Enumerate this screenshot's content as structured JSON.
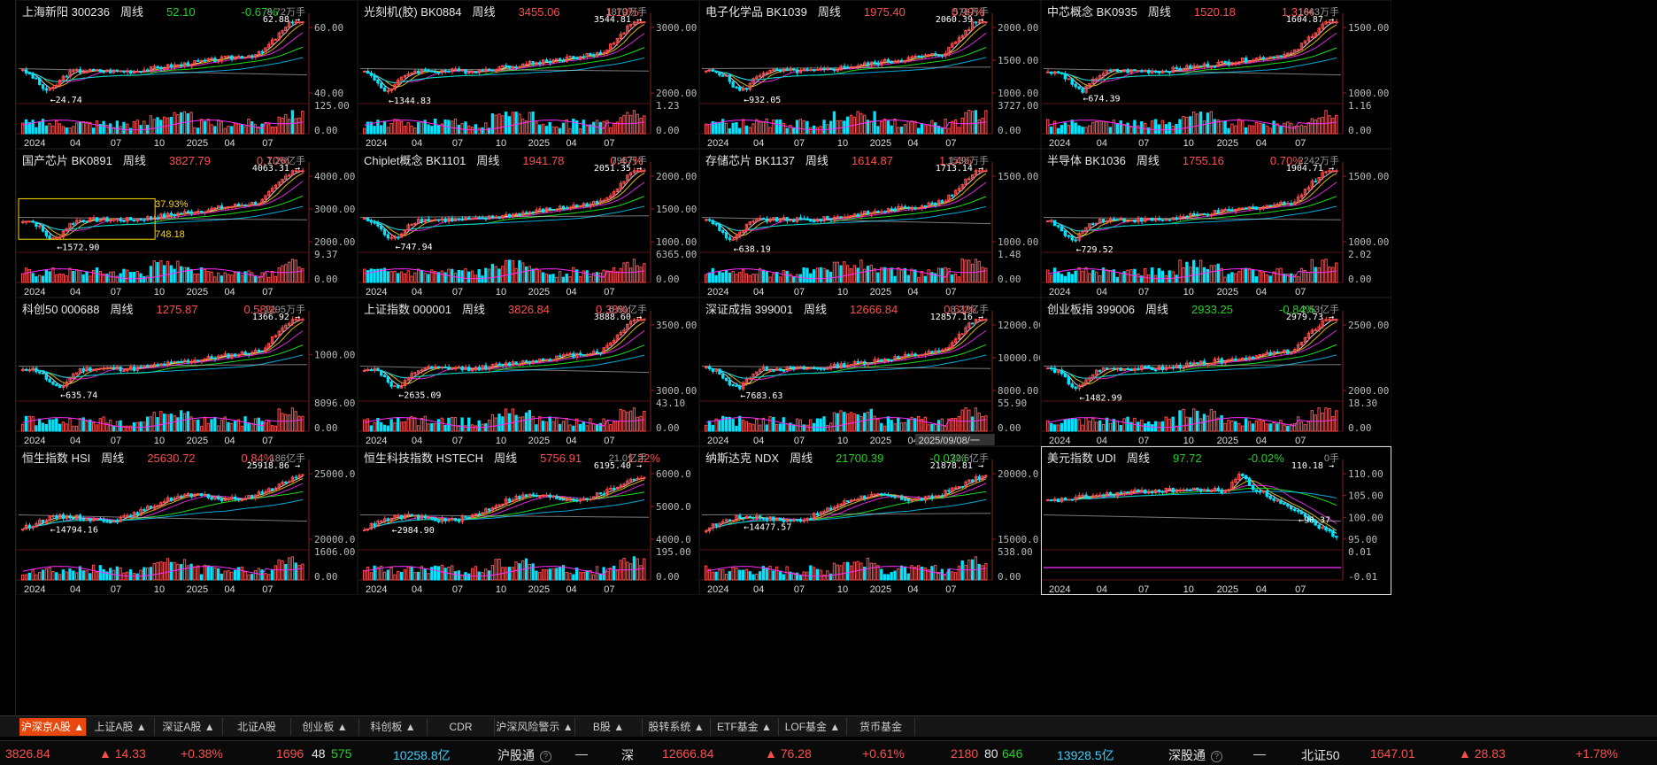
{
  "panels": [
    {
      "name": "上海新阳",
      "code": "300236",
      "period": "周线",
      "price": "52.10",
      "change": "-0.67%",
      "dir": "dn",
      "volume": "8.72万手",
      "high": "62.88",
      "low": "24.74",
      "y_ticks": [
        "60.00",
        "40.00"
      ],
      "vol_ticks": [
        "125.00",
        "0.00"
      ]
    },
    {
      "name": "光刻机(胶)",
      "code": "BK0884",
      "period": "周线",
      "price": "3455.06",
      "change": "1.19%",
      "dir": "up",
      "volume": "1870万手",
      "high": "3544.81",
      "low": "1344.83",
      "y_ticks": [
        "3000.00",
        "2000.00"
      ],
      "vol_ticks": [
        "1.23",
        "0.00"
      ]
    },
    {
      "name": "电子化学品",
      "code": "BK1039",
      "period": "周线",
      "price": "1975.40",
      "change": "0.99%",
      "dir": "up",
      "volume": "576万手",
      "high": "2060.39",
      "low": "932.05",
      "y_ticks": [
        "2000.00",
        "1500.00",
        "1000.00"
      ],
      "vol_ticks": [
        "3727.00",
        "0.00"
      ]
    },
    {
      "name": "中芯概念",
      "code": "BK0935",
      "period": "周线",
      "price": "1520.18",
      "change": "1.31%",
      "dir": "up",
      "volume": "1643万手",
      "high": "1604.87",
      "low": "674.39",
      "y_ticks": [
        "1500.00",
        "1000.00"
      ],
      "vol_ticks": [
        "1.16",
        "0.00"
      ]
    },
    {
      "name": "国产芯片",
      "code": "BK0891",
      "period": "周线",
      "price": "3827.79",
      "change": "0.70%",
      "dir": "up",
      "volume": "1.26亿手",
      "high": "4063.31",
      "low": "1572.90",
      "y_ticks": [
        "4000.00",
        "3000.00",
        "2000.00"
      ],
      "vol_ticks": [
        "9.37",
        "0.00"
      ],
      "box_pct": "37.93%",
      "box_val": "748.18"
    },
    {
      "name": "Chiplet概念",
      "code": "BK1101",
      "period": "周线",
      "price": "1941.78",
      "change": "0.47%",
      "dir": "up",
      "volume": "796万手",
      "high": "2051.35",
      "low": "747.94",
      "y_ticks": [
        "2000.00",
        "1500.00",
        "1000.00"
      ],
      "vol_ticks": [
        "6365.00",
        "0.00"
      ]
    },
    {
      "name": "存储芯片",
      "code": "BK1137",
      "period": "周线",
      "price": "1614.87",
      "change": "1.14%",
      "dir": "up",
      "volume": "1536万手",
      "high": "1713.14",
      "low": "638.19",
      "y_ticks": [
        "1500.00",
        "1000.00"
      ],
      "vol_ticks": [
        "1.48",
        "0.00"
      ]
    },
    {
      "name": "半导体",
      "code": "BK1036",
      "period": "周线",
      "price": "1755.16",
      "change": "0.70%",
      "dir": "up",
      "volume": "2242万手",
      "high": "1904.71",
      "low": "729.52",
      "y_ticks": [
        "1500.00",
        "1000.00"
      ],
      "vol_ticks": [
        "2.02",
        "0.00"
      ]
    },
    {
      "name": "科创50",
      "code": "000688",
      "period": "周线",
      "price": "1275.87",
      "change": "0.58%",
      "dir": "up",
      "volume": "1295万手",
      "high": "1366.92",
      "low": "635.74",
      "y_ticks": [
        "1000.00"
      ],
      "vol_ticks": [
        "8096.00",
        "0.00"
      ]
    },
    {
      "name": "上证指数",
      "code": "000001",
      "period": "周线",
      "price": "3826.84",
      "change": "0.38%",
      "dir": "up",
      "volume": "6.60亿手",
      "high": "3888.60",
      "low": "2635.09",
      "y_ticks": [
        "3500.00",
        "3000.00"
      ],
      "vol_ticks": [
        "43.10",
        "0.00"
      ]
    },
    {
      "name": "深证成指",
      "code": "399001",
      "period": "周线",
      "price": "12666.84",
      "change": "0.61%",
      "dir": "up",
      "volume": "8.22亿手",
      "high": "12857.16",
      "low": "7683.63",
      "y_ticks": [
        "12000.00",
        "10000.00",
        "8000.00"
      ],
      "vol_ticks": [
        "55.90",
        "0.00"
      ],
      "date_tip": "2025/09/08/一"
    },
    {
      "name": "创业板指",
      "code": "399006",
      "period": "周线",
      "price": "2933.25",
      "change": "-0.84%",
      "dir": "dn",
      "volume": "2.53亿手",
      "high": "2979.73",
      "low": "1482.99",
      "y_ticks": [
        "2500.00",
        "2000.00"
      ],
      "vol_ticks": [
        "18.30",
        "0.00"
      ]
    },
    {
      "name": "恒生指数",
      "code": "HSI",
      "period": "周线",
      "price": "25630.72",
      "change": "0.84%",
      "dir": "up",
      "volume": "186亿手",
      "high": "25918.86",
      "low": "14794.16",
      "y_ticks": [
        "25000.0",
        "20000.0"
      ],
      "vol_ticks": [
        "1606.00",
        "0.00"
      ]
    },
    {
      "name": "恒生科技指数",
      "code": "HSTECH",
      "period": "周线",
      "price": "5756.91",
      "change": "1.22%",
      "dir": "up",
      "volume": "21.0亿手",
      "high": "6195.40",
      "low": "2984.90",
      "y_ticks": [
        "6000.0",
        "5000.0",
        "4000.0"
      ],
      "vol_ticks": [
        "195.00",
        "0.00"
      ]
    },
    {
      "name": "纳斯达克",
      "code": "NDX",
      "period": "周线",
      "price": "21700.39",
      "change": "-0.03%",
      "dir": "dn",
      "volume": "72.5亿手",
      "high": "21878.81",
      "low": "14477.57",
      "y_ticks": [
        "20000.0",
        "15000.0"
      ],
      "vol_ticks": [
        "538.00",
        "0.00"
      ]
    },
    {
      "name": "美元指数",
      "code": "UDI",
      "period": "周线",
      "price": "97.72",
      "change": "-0.02%",
      "dir": "dn",
      "volume": "0手",
      "high": "110.18",
      "low": "96.37",
      "y_ticks": [
        "110.00",
        "105.00",
        "100.00",
        "95.00"
      ],
      "vol_ticks": [
        "0.01",
        "-0.01"
      ]
    }
  ],
  "x_labels": [
    "2024",
    "04",
    "07",
    "10",
    "2025",
    "04",
    "07"
  ],
  "tabs": [
    "沪深京A股",
    "上证A股",
    "深证A股",
    "北证A股",
    "创业板",
    "科创板",
    "CDR",
    "沪深风险警示",
    "B股",
    "股转系统",
    "ETF基金",
    "LOF基金",
    "货币基金"
  ],
  "status": {
    "sh_index": "3826.84",
    "sh_change": "▲ 14.33",
    "sh_pct": "+0.38%",
    "sh_up": "1696",
    "sh_flat": "48",
    "sh_down": "575",
    "sh_amount": "10258.8亿",
    "hgt_label": "沪股通",
    "hgt_value": "—",
    "sz_label": "深",
    "sz_index": "12666.84",
    "sz_change": "▲ 76.28",
    "sz_pct": "+0.61%",
    "sz_up": "2180",
    "sz_flat": "80",
    "sz_down": "646",
    "sz_amount": "13928.5亿",
    "sgt_label": "深股通",
    "sgt_value": "—",
    "bz_label": "北证50",
    "bz_index": "1647.01",
    "bz_change": "▲ 28.83",
    "bz_pct": "+1.78%"
  },
  "colors": {
    "up": "#ff4d4d",
    "down": "#22d122",
    "cyan": "#00e5ff",
    "ma5": "#ffffff",
    "ma10": "#ffd700",
    "ma20": "#ff2dff",
    "ma60": "#20ff20",
    "ma120": "#00c8ff",
    "accent": "#e8480c"
  }
}
